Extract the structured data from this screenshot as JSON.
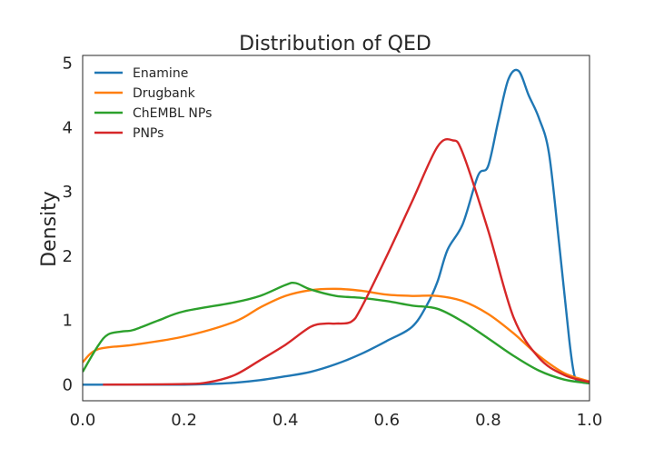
{
  "chart_data": {
    "type": "line",
    "title": "Distribution of QED",
    "xlabel": "",
    "ylabel": "Density",
    "xlim": [
      0.0,
      1.0
    ],
    "ylim": [
      -0.25,
      5.12
    ],
    "xticks": [
      "0.0",
      "0.2",
      "0.4",
      "0.6",
      "0.8",
      "1.0"
    ],
    "yticks": [
      "0",
      "1",
      "2",
      "3",
      "4",
      "5"
    ],
    "grid": false,
    "legend_position": "top-left",
    "series": [
      {
        "name": "Enamine",
        "color": "#1f77b4",
        "x": [
          0.0,
          0.1,
          0.2,
          0.25,
          0.3,
          0.35,
          0.4,
          0.45,
          0.5,
          0.55,
          0.6,
          0.65,
          0.68,
          0.7,
          0.72,
          0.75,
          0.78,
          0.8,
          0.82,
          0.84,
          0.86,
          0.88,
          0.9,
          0.92,
          0.94,
          0.96,
          0.97,
          0.98,
          1.0
        ],
        "y": [
          0.0,
          0.0,
          0.0,
          0.01,
          0.03,
          0.07,
          0.13,
          0.2,
          0.32,
          0.48,
          0.68,
          0.9,
          1.25,
          1.6,
          2.1,
          2.5,
          3.25,
          3.4,
          4.1,
          4.75,
          4.88,
          4.5,
          4.15,
          3.6,
          2.2,
          0.7,
          0.15,
          0.05,
          0.02
        ]
      },
      {
        "name": "Drugbank",
        "color": "#ff7f0e",
        "x": [
          0.0,
          0.03,
          0.1,
          0.2,
          0.3,
          0.35,
          0.4,
          0.45,
          0.5,
          0.55,
          0.6,
          0.65,
          0.7,
          0.75,
          0.8,
          0.85,
          0.9,
          0.95,
          1.0
        ],
        "y": [
          0.35,
          0.55,
          0.62,
          0.75,
          0.98,
          1.2,
          1.38,
          1.47,
          1.49,
          1.46,
          1.4,
          1.38,
          1.38,
          1.3,
          1.1,
          0.8,
          0.45,
          0.18,
          0.05
        ]
      },
      {
        "name": "ChEMBL NPs",
        "color": "#2ca02c",
        "x": [
          0.0,
          0.03,
          0.05,
          0.08,
          0.1,
          0.15,
          0.2,
          0.3,
          0.35,
          0.4,
          0.42,
          0.45,
          0.5,
          0.55,
          0.6,
          0.65,
          0.7,
          0.75,
          0.8,
          0.85,
          0.9,
          0.95,
          1.0
        ],
        "y": [
          0.2,
          0.6,
          0.78,
          0.83,
          0.85,
          1.0,
          1.14,
          1.28,
          1.38,
          1.55,
          1.58,
          1.48,
          1.38,
          1.35,
          1.3,
          1.23,
          1.18,
          0.98,
          0.72,
          0.45,
          0.22,
          0.08,
          0.02
        ]
      },
      {
        "name": "PNPs",
        "color": "#d62728",
        "x": [
          0.04,
          0.2,
          0.25,
          0.3,
          0.35,
          0.4,
          0.45,
          0.48,
          0.5,
          0.53,
          0.55,
          0.6,
          0.65,
          0.7,
          0.73,
          0.75,
          0.8,
          0.85,
          0.9,
          0.95,
          1.0
        ],
        "y": [
          0.0,
          0.01,
          0.04,
          0.15,
          0.38,
          0.62,
          0.9,
          0.95,
          0.95,
          0.98,
          1.2,
          2.0,
          2.85,
          3.7,
          3.8,
          3.6,
          2.4,
          1.05,
          0.42,
          0.15,
          0.04
        ]
      }
    ]
  }
}
